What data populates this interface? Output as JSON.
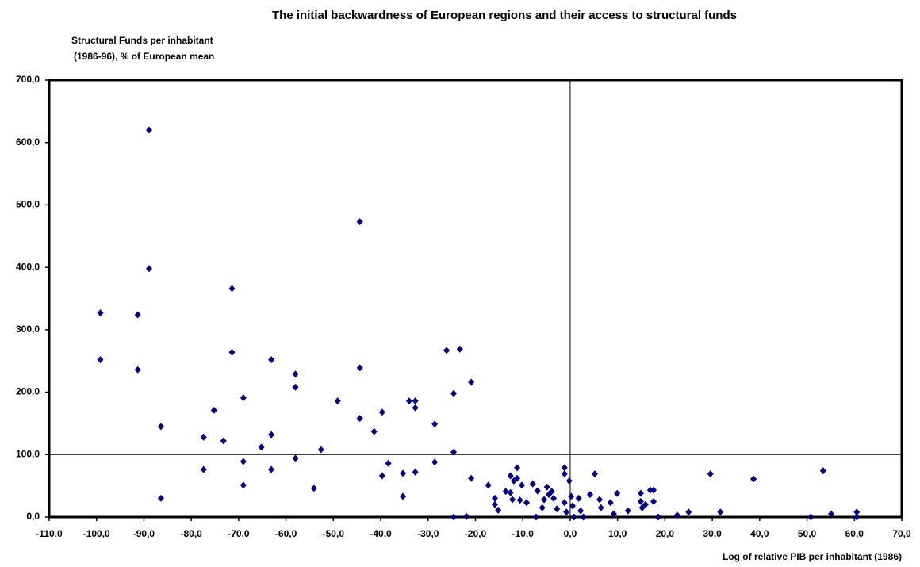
{
  "chart_data": {
    "type": "scatter",
    "title": "The initial backwardness of European regions and their access to structural funds",
    "y_label": [
      "Structural Funds per inhabitant",
      "(1986-96), % of  European mean"
    ],
    "x_label": "Log of relative PIB per inhabitant (1986)",
    "xlim": [
      -110,
      70
    ],
    "ylim": [
      0,
      700
    ],
    "xticks": [
      {
        "value": -110,
        "label": "-110,0"
      },
      {
        "value": -100,
        "label": "-100,0"
      },
      {
        "value": -90,
        "label": "-90,0"
      },
      {
        "value": -80,
        "label": "-80,0"
      },
      {
        "value": -70,
        "label": "-70,0"
      },
      {
        "value": -60,
        "label": "-60,0"
      },
      {
        "value": -50,
        "label": "-50,0"
      },
      {
        "value": -40,
        "label": "-40,0"
      },
      {
        "value": -30,
        "label": "-30,0"
      },
      {
        "value": -20,
        "label": "-20,0"
      },
      {
        "value": -10,
        "label": "-10,0"
      },
      {
        "value": 0,
        "label": "0,0"
      },
      {
        "value": 10,
        "label": "10,0"
      },
      {
        "value": 20,
        "label": "20,0"
      },
      {
        "value": 30,
        "label": "30,0"
      },
      {
        "value": 40,
        "label": "40,0"
      },
      {
        "value": 50,
        "label": "50,0"
      },
      {
        "value": 60,
        "label": "60,0"
      },
      {
        "value": 70,
        "label": "70,0"
      }
    ],
    "yticks": [
      {
        "value": 0,
        "label": "0,0"
      },
      {
        "value": 100,
        "label": "100,0"
      },
      {
        "value": 200,
        "label": "200,0"
      },
      {
        "value": 300,
        "label": "300,0"
      },
      {
        "value": 400,
        "label": "400,0"
      },
      {
        "value": 500,
        "label": "500,0"
      },
      {
        "value": 600,
        "label": "600,0"
      },
      {
        "value": 700,
        "label": "700,0"
      }
    ],
    "reference_x": 0,
    "reference_y": 100,
    "color": "#000080",
    "x": [
      -99.2,
      -99.2,
      -88.9,
      -88.9,
      -91.3,
      -91.3,
      -86.4,
      -86.4,
      -77.4,
      -77.4,
      -75.2,
      -73.2,
      -71.4,
      -71.4,
      -69.0,
      -69.0,
      -69.0,
      -65.2,
      -63.1,
      -63.1,
      -63.1,
      -58.0,
      -58.0,
      -58.0,
      -52.6,
      -54.1,
      -49.1,
      -44.4,
      -44.4,
      -44.4,
      -41.4,
      -39.7,
      -39.7,
      -38.4,
      -35.3,
      -35.3,
      -34.0,
      -32.7,
      -32.7,
      -32.7,
      -28.6,
      -28.6,
      -26.1,
      -23.3,
      -24.6,
      -24.6,
      -24.6,
      -21.9,
      -20.9,
      -20.9,
      -17.3,
      -15.9,
      -15.9,
      -15.2,
      -13.6,
      -12.6,
      -12.6,
      -12.2,
      -11.9,
      -11.2,
      -11.2,
      -10.6,
      -10.2,
      -9.2,
      -7.9,
      -6.9,
      -7.2,
      -5.9,
      -5.5,
      -4.9,
      -4.5,
      -3.9,
      -3.5,
      -2.8,
      -1.2,
      -1.2,
      -1.2,
      -0.8,
      -0.2,
      0.2,
      0.5,
      0.8,
      1.8,
      2.2,
      2.8,
      4.2,
      5.2,
      6.2,
      6.5,
      8.5,
      9.9,
      9.2,
      12.2,
      14.9,
      14.9,
      15.2,
      15.9,
      16.9,
      17.6,
      17.6,
      18.6,
      22.6,
      25.0,
      29.6,
      31.7,
      38.7,
      50.8,
      53.4,
      55.1,
      60.5,
      60.5
    ],
    "y": [
      327,
      252,
      620,
      398,
      324,
      236,
      145,
      30,
      128,
      76,
      171,
      122,
      366,
      264,
      191,
      89,
      51,
      112,
      252,
      132,
      76,
      229,
      208,
      94,
      108,
      46,
      186,
      473,
      239,
      158,
      137,
      168,
      66,
      86,
      70,
      33,
      186,
      186,
      175,
      72,
      149,
      88,
      267,
      269,
      198,
      104,
      0,
      1,
      216,
      62,
      51,
      30,
      20,
      11,
      41,
      39,
      66,
      28,
      58,
      79,
      62,
      27,
      51,
      23,
      53,
      42,
      0,
      15,
      28,
      48,
      36,
      41,
      30,
      13,
      79,
      69,
      23,
      8,
      58,
      33,
      18,
      0,
      30,
      10,
      0,
      36,
      69,
      28,
      15,
      23,
      38,
      5,
      10,
      38,
      25,
      15,
      20,
      43,
      43,
      25,
      0,
      3,
      8,
      69,
      8,
      61,
      0,
      74,
      5,
      8,
      0
    ]
  }
}
